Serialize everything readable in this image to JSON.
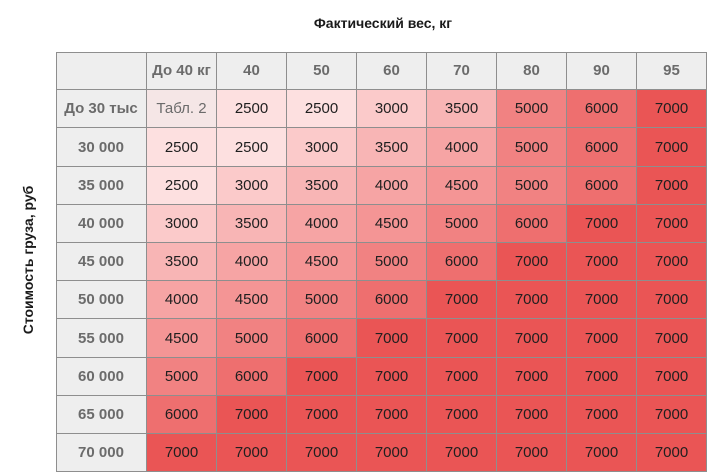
{
  "chart_data": {
    "type": "heatmap",
    "xlabel": "Фактический вес, кг",
    "ylabel": "Стоимость груза, руб",
    "columns": [
      "До 40 кг",
      "40",
      "50",
      "60",
      "70",
      "80",
      "90",
      "95"
    ],
    "rows": [
      "До 30 тыс",
      "30 000",
      "35 000",
      "40 000",
      "45 000",
      "50 000",
      "55 000",
      "60 000",
      "65 000",
      "70 000"
    ],
    "cells": [
      [
        "Табл. 2",
        "2500",
        "2500",
        "3000",
        "3500",
        "5000",
        "6000",
        "7000"
      ],
      [
        "2500",
        "2500",
        "3000",
        "3500",
        "4000",
        "5000",
        "6000",
        "7000"
      ],
      [
        "2500",
        "3000",
        "3500",
        "4000",
        "4500",
        "5000",
        "6000",
        "7000"
      ],
      [
        "3000",
        "3500",
        "4000",
        "4500",
        "5000",
        "6000",
        "7000",
        "7000"
      ],
      [
        "3500",
        "4000",
        "4500",
        "5000",
        "6000",
        "7000",
        "7000",
        "7000"
      ],
      [
        "4000",
        "4500",
        "5000",
        "6000",
        "7000",
        "7000",
        "7000",
        "7000"
      ],
      [
        "4500",
        "5000",
        "6000",
        "7000",
        "7000",
        "7000",
        "7000",
        "7000"
      ],
      [
        "5000",
        "6000",
        "7000",
        "7000",
        "7000",
        "7000",
        "7000",
        "7000"
      ],
      [
        "6000",
        "7000",
        "7000",
        "7000",
        "7000",
        "7000",
        "7000",
        "7000"
      ],
      [
        "7000",
        "7000",
        "7000",
        "7000",
        "7000",
        "7000",
        "7000",
        "7000"
      ]
    ],
    "color_scale": {
      "special": "#f5e6e6",
      "2500": "#fde0e0",
      "3000": "#fbcaca",
      "3500": "#f8b5b5",
      "4000": "#f6a4a4",
      "4500": "#f49595",
      "5000": "#f18282",
      "6000": "#ee6f6f",
      "7000": "#ea5555"
    },
    "header_background": "#eeeeee",
    "grid_color": "#8e8e8e"
  }
}
